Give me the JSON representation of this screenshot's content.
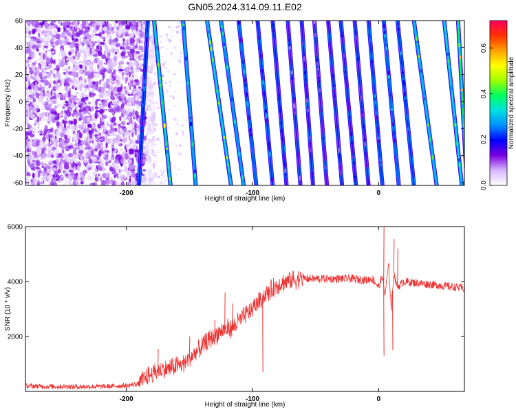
{
  "chart_data": [
    {
      "type": "heatmap",
      "title": "GN05.2024.314.09.11.E02",
      "xlabel": "Height of straight line (km)",
      "ylabel": "Frequency (Hz)",
      "xlim": [
        -280,
        68
      ],
      "ylim": [
        -62,
        60
      ],
      "xticks": [
        "-200",
        "-100",
        "0"
      ],
      "xtick_values": [
        -200,
        -100,
        0
      ],
      "yticks": [
        "60",
        "40",
        "20",
        "0",
        "-20",
        "-40",
        "-60"
      ],
      "ytick_values": [
        60,
        40,
        20,
        0,
        -20,
        -40,
        -60
      ],
      "colorbar": {
        "label": "Normalized spectral amplitude",
        "range": [
          0,
          0.72
        ],
        "ticks": [
          "0.0",
          "0.2",
          "0.4",
          "0.6"
        ],
        "tick_values": [
          0,
          0.2,
          0.4,
          0.6
        ],
        "colormap": [
          "#ffffff",
          "#d8b8ff",
          "#7a00e0",
          "#0000ff",
          "#0090ff",
          "#00e0e0",
          "#00ff60",
          "#a0ff00",
          "#ffff00",
          "#ffa000",
          "#ff3000",
          "#ff0060"
        ]
      },
      "noise_region_x": [
        -280,
        -185
      ],
      "ridges": [
        {
          "x_top": -183,
          "x_bottom": -190,
          "amplitude": 0.18
        },
        {
          "x_top": -178,
          "x_bottom": -165,
          "amplitude": 0.35
        },
        {
          "x_top": -155,
          "x_bottom": -145,
          "amplitude": 0.28
        },
        {
          "x_top": -136,
          "x_bottom": -117,
          "amplitude": 0.32
        },
        {
          "x_top": -125,
          "x_bottom": -107,
          "amplitude": 0.26
        },
        {
          "x_top": -111,
          "x_bottom": -97,
          "amplitude": 0.22
        },
        {
          "x_top": -96,
          "x_bottom": -84,
          "amplitude": 0.2
        },
        {
          "x_top": -84,
          "x_bottom": -73,
          "amplitude": 0.14
        },
        {
          "x_top": -72,
          "x_bottom": -62,
          "amplitude": 0.12
        },
        {
          "x_top": -61,
          "x_bottom": -52,
          "amplitude": 0.14
        },
        {
          "x_top": -51,
          "x_bottom": -41,
          "amplitude": 0.12
        },
        {
          "x_top": -40,
          "x_bottom": -29,
          "amplitude": 0.13
        },
        {
          "x_top": -30,
          "x_bottom": -18,
          "amplitude": 0.14
        },
        {
          "x_top": -19,
          "x_bottom": -8,
          "amplitude": 0.13
        },
        {
          "x_top": -8,
          "x_bottom": 3,
          "amplitude": 0.2
        },
        {
          "x_top": 4,
          "x_bottom": 16,
          "amplitude": 0.22
        },
        {
          "x_top": 15,
          "x_bottom": 28,
          "amplitude": 0.2
        },
        {
          "x_top": 28,
          "x_bottom": 46,
          "amplitude": 0.3
        },
        {
          "x_top": 52,
          "x_bottom": 66,
          "amplitude": 0.32
        },
        {
          "x_top": 63,
          "x_bottom": 70,
          "amplitude": 0.4
        }
      ]
    },
    {
      "type": "line",
      "xlabel": "Height of straight line (km)",
      "ylabel": "SNR (10 * v/v)",
      "xlim": [
        -280,
        68
      ],
      "ylim": [
        0,
        6000
      ],
      "xticks": [
        "-200",
        "-100",
        "0"
      ],
      "xtick_values": [
        -200,
        -100,
        0
      ],
      "yticks": [
        "6000",
        "4000",
        "2000"
      ],
      "ytick_values": [
        6000,
        4000,
        2000
      ],
      "color": "#ee3030",
      "series": [
        {
          "x": [
            -280,
            -260,
            -240,
            -220,
            -200,
            -190,
            -185,
            -175,
            -165,
            -155,
            -145,
            -135,
            -125,
            -115,
            -110,
            -100,
            -95,
            -90,
            -80,
            -70,
            -60,
            -50,
            -40,
            -30,
            -20,
            -10,
            -5,
            0,
            3,
            5,
            8,
            10,
            12,
            15,
            20,
            30,
            40,
            50,
            60,
            68
          ],
          "y": [
            200,
            180,
            170,
            175,
            210,
            280,
            500,
            750,
            850,
            1000,
            1400,
            1850,
            2200,
            2350,
            2600,
            3000,
            3300,
            3500,
            3900,
            4050,
            4100,
            4100,
            4100,
            4100,
            4100,
            4050,
            4100,
            3800,
            4200,
            3500,
            4600,
            3000,
            4300,
            3800,
            4000,
            3950,
            3900,
            3850,
            3800,
            3750
          ]
        }
      ],
      "spikes": [
        {
          "x": -175,
          "y": 1550
        },
        {
          "x": -150,
          "y": 2000
        },
        {
          "x": -130,
          "y": 2600
        },
        {
          "x": -122,
          "y": 3600
        },
        {
          "x": -116,
          "y": 3200
        },
        {
          "x": -92,
          "y": 700
        },
        {
          "x": 4,
          "y": 6000
        },
        {
          "x": 4,
          "y": 1300
        },
        {
          "x": 11,
          "y": 1500
        },
        {
          "x": 12,
          "y": 5550
        },
        {
          "x": 15,
          "y": 5200
        }
      ]
    }
  ]
}
